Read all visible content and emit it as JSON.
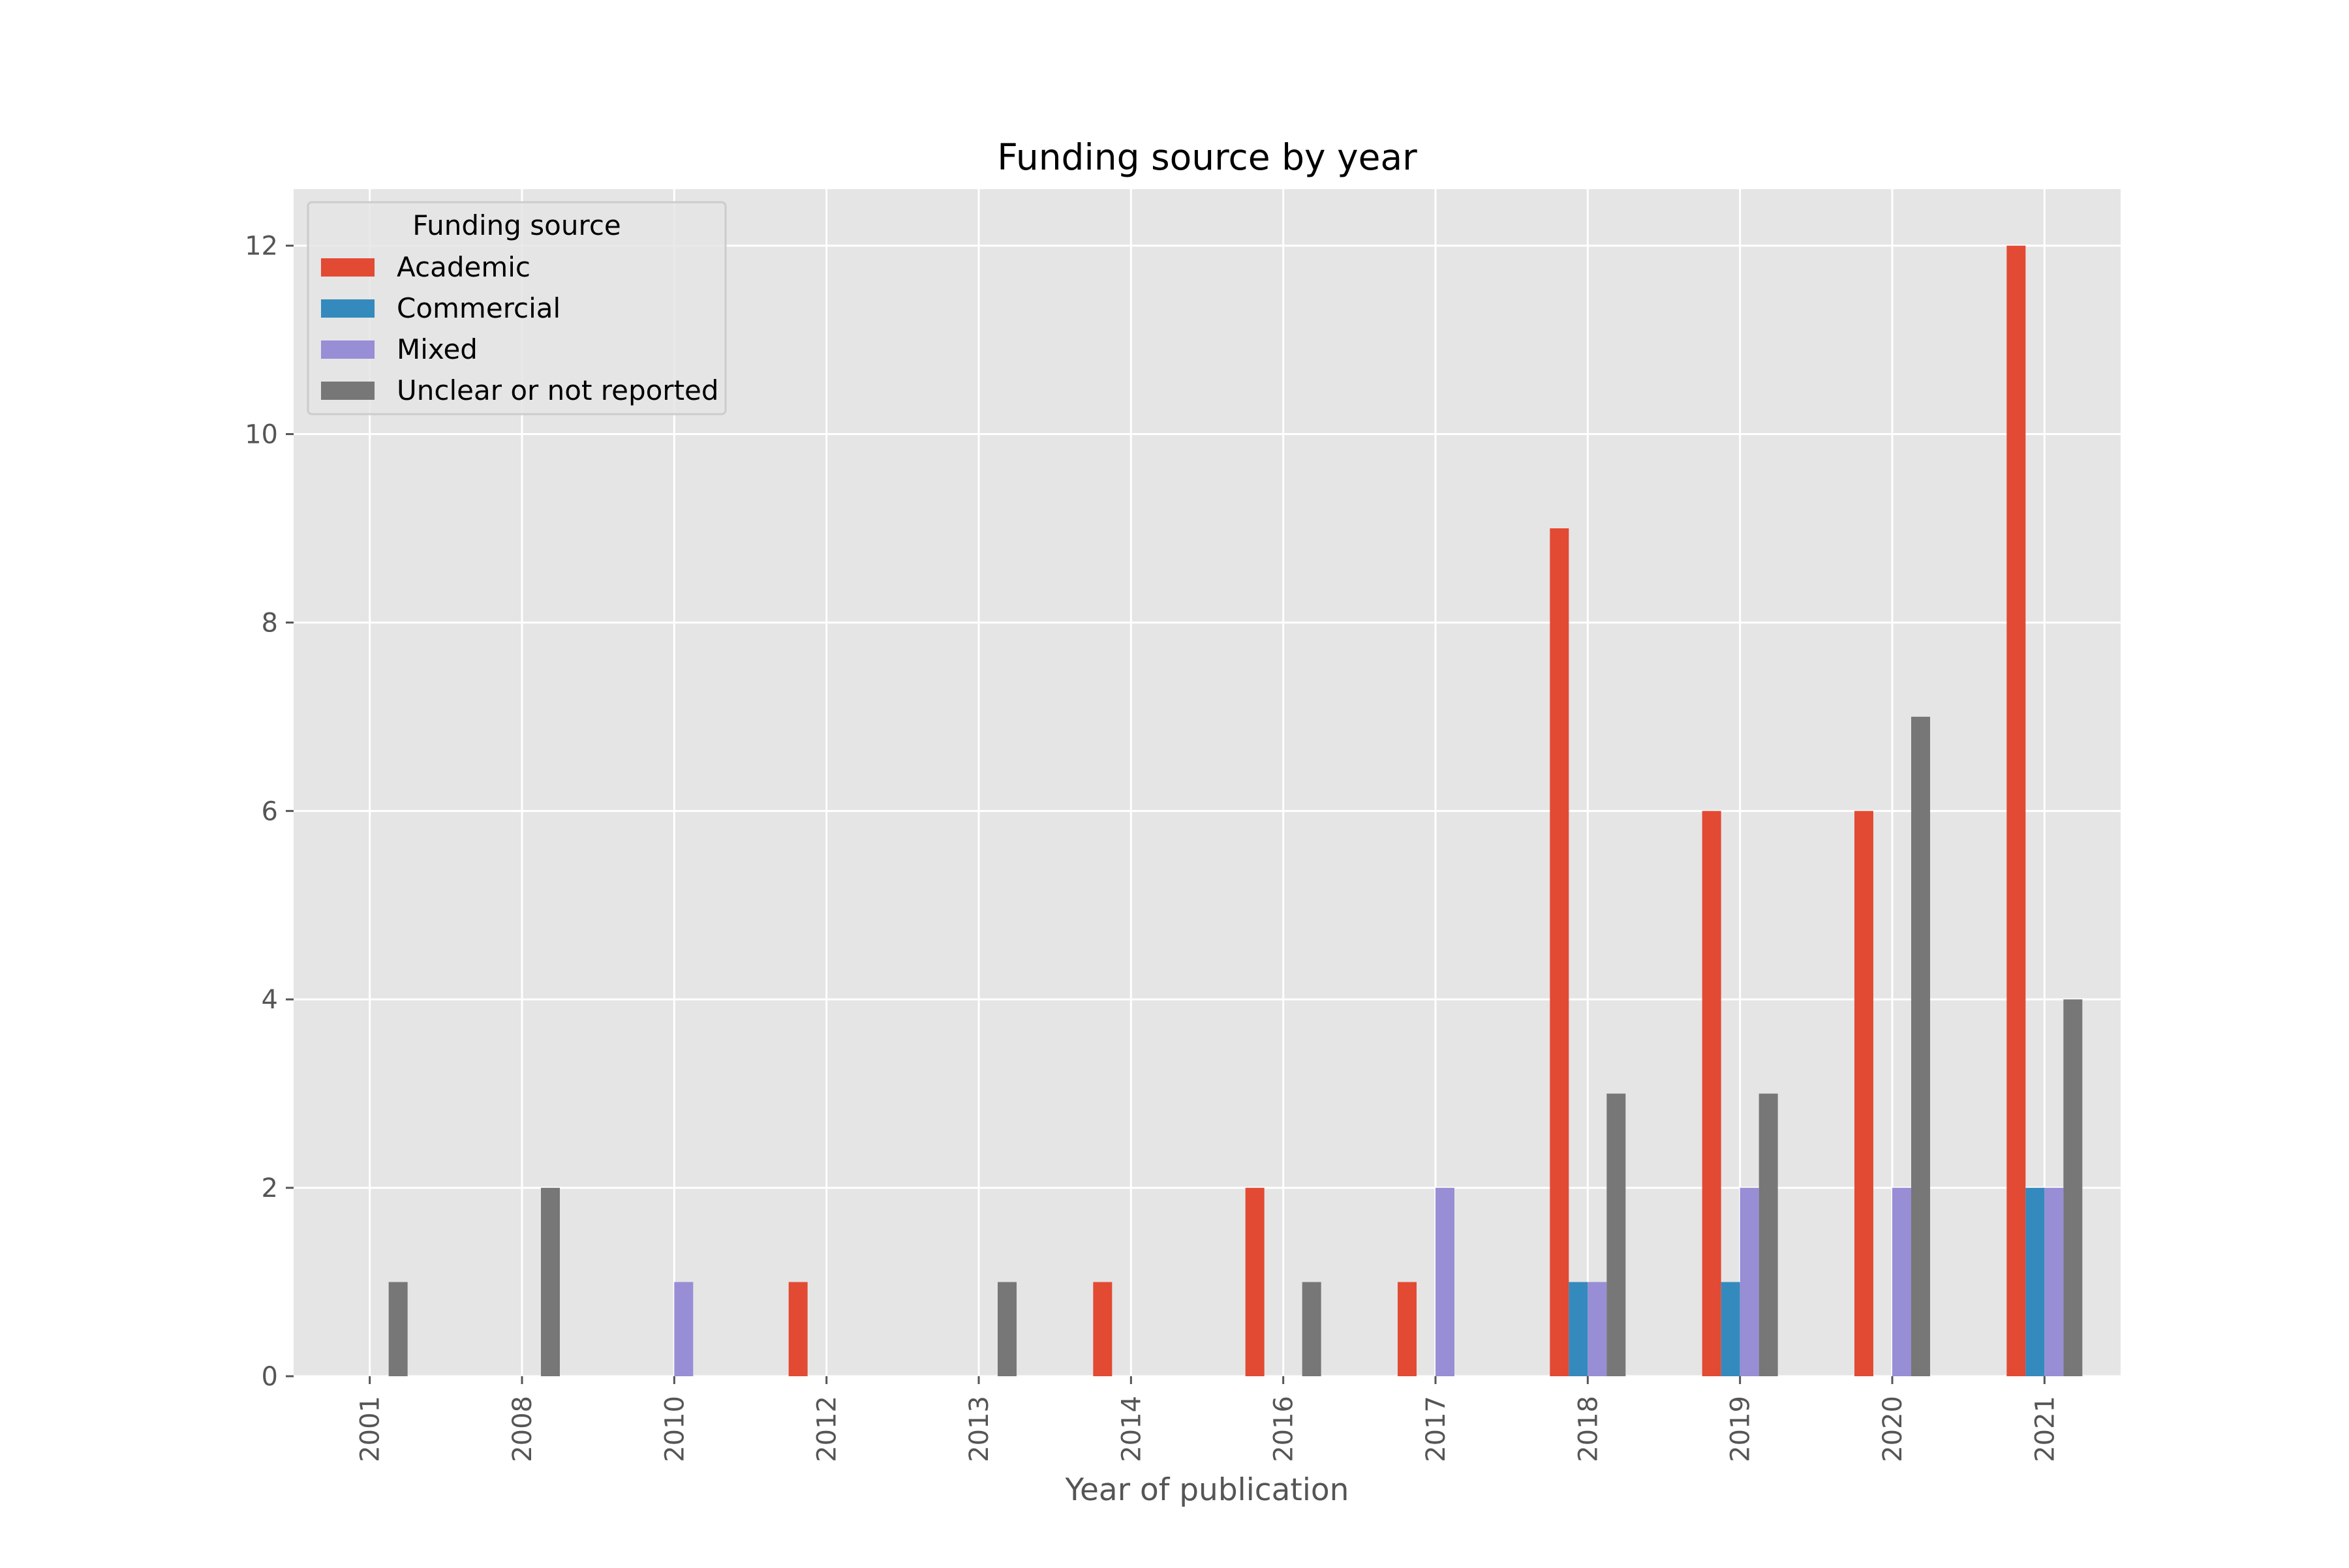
{
  "chart_data": {
    "type": "bar",
    "title": "Funding source by year",
    "xlabel": "Year of publication",
    "ylabel": "",
    "categories": [
      "2001",
      "2008",
      "2010",
      "2012",
      "2013",
      "2014",
      "2016",
      "2017",
      "2018",
      "2019",
      "2020",
      "2021"
    ],
    "series": [
      {
        "name": "Academic",
        "color": "#E24A33",
        "values": [
          0,
          0,
          0,
          1,
          0,
          1,
          2,
          1,
          9,
          6,
          6,
          12
        ]
      },
      {
        "name": "Commercial",
        "color": "#348ABD",
        "values": [
          0,
          0,
          0,
          0,
          0,
          0,
          0,
          0,
          1,
          1,
          0,
          2
        ]
      },
      {
        "name": "Mixed",
        "color": "#988ED5",
        "values": [
          0,
          0,
          1,
          0,
          0,
          0,
          0,
          2,
          1,
          2,
          2,
          2
        ]
      },
      {
        "name": "Unclear or not reported",
        "color": "#777777",
        "values": [
          1,
          2,
          0,
          0,
          1,
          0,
          1,
          0,
          3,
          3,
          7,
          4
        ]
      }
    ],
    "ylim": [
      0,
      12.6
    ],
    "yticks": [
      0,
      2,
      4,
      6,
      8,
      10,
      12
    ],
    "legend_title": "Funding source",
    "legend_position": "upper left",
    "grid": true,
    "style": "ggplot",
    "colors": {
      "plot_background": "#E5E5E5",
      "grid": "#FFFFFF",
      "tick_text": "#555555",
      "title_text": "#000000"
    }
  }
}
